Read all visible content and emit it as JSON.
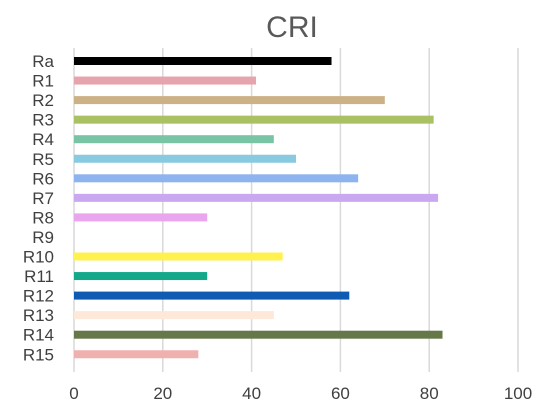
{
  "chart_data": {
    "type": "bar",
    "orientation": "horizontal",
    "title": "CRI",
    "xlabel": "",
    "ylabel": "",
    "xlim": [
      0,
      100
    ],
    "xticks": [
      0,
      20,
      40,
      60,
      80,
      100
    ],
    "grid": "vertical",
    "legend": "none",
    "categories": [
      "Ra",
      "R1",
      "R2",
      "R3",
      "R4",
      "R5",
      "R6",
      "R7",
      "R8",
      "R9",
      "R10",
      "R11",
      "R12",
      "R13",
      "R14",
      "R15"
    ],
    "values": [
      58,
      41,
      70,
      81,
      45,
      50,
      64,
      82,
      30,
      0,
      47,
      30,
      62,
      45,
      83,
      28
    ],
    "colors": [
      "#000000",
      "#e6a5ad",
      "#cbb185",
      "#a9c163",
      "#78c4a4",
      "#88cadf",
      "#8db4ee",
      "#c9a8f0",
      "#e9a5ee",
      "#ffffff",
      "#fff24f",
      "#14a88a",
      "#0f5bb4",
      "#fde8d9",
      "#66784a",
      "#efb1ad"
    ]
  }
}
